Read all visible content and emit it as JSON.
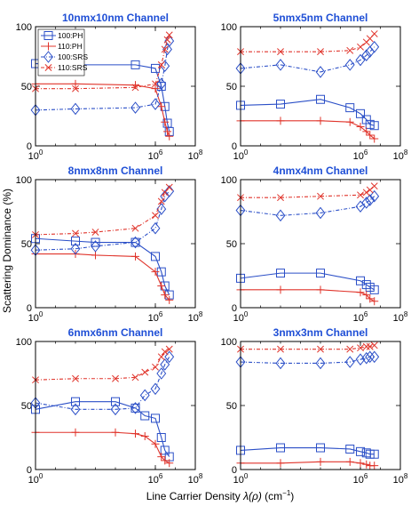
{
  "figure": {
    "ylabel": "Scattering Dominance (%)",
    "xlabel_main": "Line Carrier Density ",
    "xlabel_symbol": "λ(ρ)",
    "xlabel_unit": " (cm",
    "xlabel_unit_exp": "−1",
    "xlabel_close": ")"
  },
  "colors": {
    "blue": "#2b4fc7",
    "red": "#e0342b",
    "title": "#1f4fd6"
  },
  "chart_data": [
    {
      "type": "line",
      "title": "10nmx10nm Channel",
      "xscale": "log",
      "xlim": [
        1,
        100000000
      ],
      "ylim": [
        0,
        100
      ],
      "xticks": [
        {
          "v": 1,
          "base": "10",
          "exp": "0"
        },
        {
          "v": 1000000,
          "base": "10",
          "exp": "6"
        },
        {
          "v": 100000000,
          "base": "10",
          "exp": "8"
        }
      ],
      "yticks": [
        "0",
        "50",
        "100"
      ],
      "legend": {
        "position": "top-left",
        "entries": [
          "100:PH",
          "110:PH",
          "100:SRS",
          "110:SRS"
        ]
      },
      "series": [
        {
          "name": "100:PH",
          "color": "blue",
          "dash": "solid",
          "marker": "square",
          "x": [
            1,
            100,
            100000,
            1000000,
            2000000,
            3000000,
            4000000,
            5000000
          ],
          "y": [
            69,
            68,
            68,
            65,
            50,
            33,
            19,
            12
          ]
        },
        {
          "name": "110:PH",
          "color": "red",
          "dash": "solid",
          "marker": "plus",
          "x": [
            1,
            100,
            100000,
            1000000,
            2000000,
            3000000,
            4000000,
            5000000
          ],
          "y": [
            52,
            52,
            51,
            48,
            33,
            20,
            12,
            8
          ]
        },
        {
          "name": "100:SRS",
          "color": "blue",
          "dash": "dashdot",
          "marker": "diamond",
          "x": [
            1,
            100,
            100000,
            1000000,
            2000000,
            3000000,
            4000000,
            5000000
          ],
          "y": [
            30,
            31,
            32,
            35,
            52,
            67,
            81,
            88
          ]
        },
        {
          "name": "110:SRS",
          "color": "red",
          "dash": "dashdot",
          "marker": "x",
          "x": [
            1,
            100,
            100000,
            1000000,
            2000000,
            3000000,
            4000000,
            5000000
          ],
          "y": [
            48,
            48,
            49,
            52,
            68,
            81,
            89,
            93
          ]
        }
      ]
    },
    {
      "type": "line",
      "title": "5nmx5nm Channel",
      "xscale": "log",
      "xlim": [
        1,
        100000000
      ],
      "ylim": [
        0,
        100
      ],
      "xticks": [
        {
          "v": 1,
          "base": "10",
          "exp": "0"
        },
        {
          "v": 1000000,
          "base": "10",
          "exp": "6"
        },
        {
          "v": 100000000,
          "base": "10",
          "exp": "8"
        }
      ],
      "yticks": [
        "0",
        "50",
        "100"
      ],
      "series": [
        {
          "name": "100:PH",
          "color": "blue",
          "dash": "solid",
          "marker": "square",
          "x": [
            1,
            100,
            10000,
            300000,
            1000000,
            2000000,
            3000000,
            5000000
          ],
          "y": [
            34,
            35,
            39,
            32,
            27,
            22,
            18,
            17
          ]
        },
        {
          "name": "110:PH",
          "color": "red",
          "dash": "solid",
          "marker": "plus",
          "x": [
            1,
            100,
            10000,
            300000,
            1000000,
            2000000,
            3000000,
            5000000
          ],
          "y": [
            21,
            21,
            21,
            20,
            16,
            12,
            9,
            6
          ]
        },
        {
          "name": "100:SRS",
          "color": "blue",
          "dash": "dashdot",
          "marker": "diamond",
          "x": [
            1,
            100,
            10000,
            300000,
            1000000,
            2000000,
            3000000,
            5000000
          ],
          "y": [
            65,
            68,
            62,
            68,
            72,
            76,
            79,
            83
          ]
        },
        {
          "name": "110:SRS",
          "color": "red",
          "dash": "dashdot",
          "marker": "x",
          "x": [
            1,
            100,
            10000,
            300000,
            1000000,
            2000000,
            3000000,
            5000000
          ],
          "y": [
            79,
            79,
            79,
            80,
            83,
            87,
            90,
            94
          ]
        }
      ]
    },
    {
      "type": "line",
      "title": "8nmx8nm Channel",
      "xscale": "log",
      "xlim": [
        1,
        100000000
      ],
      "ylim": [
        0,
        100
      ],
      "xticks": [
        {
          "v": 1,
          "base": "10",
          "exp": "0"
        },
        {
          "v": 1000000,
          "base": "10",
          "exp": "6"
        },
        {
          "v": 100000000,
          "base": "10",
          "exp": "8"
        }
      ],
      "yticks": [
        "0",
        "50",
        "100"
      ],
      "series": [
        {
          "name": "100:PH",
          "color": "blue",
          "dash": "solid",
          "marker": "square",
          "x": [
            1,
            100,
            1000,
            100000,
            1000000,
            2000000,
            3000000,
            5000000
          ],
          "y": [
            54,
            52,
            51,
            51,
            40,
            28,
            17,
            10
          ]
        },
        {
          "name": "110:PH",
          "color": "red",
          "dash": "solid",
          "marker": "plus",
          "x": [
            1,
            100,
            1000,
            100000,
            1000000,
            2000000,
            3000000,
            5000000
          ],
          "y": [
            42,
            42,
            41,
            40,
            28,
            17,
            10,
            6
          ]
        },
        {
          "name": "100:SRS",
          "color": "blue",
          "dash": "dashdot",
          "marker": "diamond",
          "x": [
            1,
            100,
            1000,
            100000,
            1000000,
            2000000,
            3000000,
            5000000
          ],
          "y": [
            45,
            46,
            48,
            51,
            62,
            77,
            87,
            91
          ]
        },
        {
          "name": "110:SRS",
          "color": "red",
          "dash": "dashdot",
          "marker": "x",
          "x": [
            1,
            100,
            1000,
            100000,
            1000000,
            2000000,
            3000000,
            5000000
          ],
          "y": [
            57,
            58,
            59,
            62,
            72,
            83,
            90,
            94
          ]
        }
      ]
    },
    {
      "type": "line",
      "title": "4nmx4nm Channel",
      "xscale": "log",
      "xlim": [
        1,
        100000000
      ],
      "ylim": [
        0,
        100
      ],
      "xticks": [
        {
          "v": 1,
          "base": "10",
          "exp": "0"
        },
        {
          "v": 1000000,
          "base": "10",
          "exp": "6"
        },
        {
          "v": 100000000,
          "base": "10",
          "exp": "8"
        }
      ],
      "yticks": [
        "0",
        "50",
        "100"
      ],
      "series": [
        {
          "name": "100:PH",
          "color": "blue",
          "dash": "solid",
          "marker": "square",
          "x": [
            1,
            100,
            10000,
            1000000,
            2000000,
            3000000,
            5000000
          ],
          "y": [
            23,
            27,
            27,
            21,
            18,
            16,
            14
          ]
        },
        {
          "name": "110:PH",
          "color": "red",
          "dash": "solid",
          "marker": "plus",
          "x": [
            1,
            100,
            10000,
            1000000,
            2000000,
            3000000,
            5000000
          ],
          "y": [
            14,
            14,
            14,
            12,
            10,
            7,
            5
          ]
        },
        {
          "name": "100:SRS",
          "color": "blue",
          "dash": "dashdot",
          "marker": "diamond",
          "x": [
            1,
            100,
            10000,
            1000000,
            2000000,
            3000000,
            5000000
          ],
          "y": [
            76,
            72,
            74,
            79,
            82,
            84,
            87
          ]
        },
        {
          "name": "110:SRS",
          "color": "red",
          "dash": "dashdot",
          "marker": "x",
          "x": [
            1,
            100,
            10000,
            1000000,
            2000000,
            3000000,
            5000000
          ],
          "y": [
            86,
            86,
            87,
            88,
            90,
            92,
            95
          ]
        }
      ]
    },
    {
      "type": "line",
      "title": "6nmx6nm Channel",
      "xscale": "log",
      "xlim": [
        1,
        100000000
      ],
      "ylim": [
        0,
        100
      ],
      "xticks": [
        {
          "v": 1,
          "base": "10",
          "exp": "0"
        },
        {
          "v": 1000000,
          "base": "10",
          "exp": "6"
        },
        {
          "v": 100000000,
          "base": "10",
          "exp": "8"
        }
      ],
      "yticks": [
        "0",
        "50",
        "100"
      ],
      "series": [
        {
          "name": "100:PH",
          "color": "blue",
          "dash": "solid",
          "marker": "square",
          "x": [
            1,
            100,
            10000,
            100000,
            300000,
            1000000,
            2000000,
            3000000,
            5000000
          ],
          "y": [
            47,
            53,
            53,
            48,
            42,
            40,
            25,
            15,
            10
          ]
        },
        {
          "name": "110:PH",
          "color": "red",
          "dash": "solid",
          "marker": "plus",
          "x": [
            1,
            100,
            10000,
            100000,
            300000,
            1000000,
            2000000,
            3000000,
            5000000
          ],
          "y": [
            29,
            29,
            29,
            28,
            26,
            20,
            10,
            7,
            5
          ]
        },
        {
          "name": "100:SRS",
          "color": "blue",
          "dash": "dashdot",
          "marker": "diamond",
          "x": [
            1,
            100,
            10000,
            100000,
            300000,
            1000000,
            2000000,
            3000000,
            5000000
          ],
          "y": [
            52,
            47,
            47,
            48,
            58,
            63,
            75,
            82,
            88
          ]
        },
        {
          "name": "110:SRS",
          "color": "red",
          "dash": "dashdot",
          "marker": "x",
          "x": [
            1,
            100,
            10000,
            100000,
            300000,
            1000000,
            2000000,
            3000000,
            5000000
          ],
          "y": [
            70,
            71,
            71,
            72,
            76,
            80,
            88,
            92,
            94
          ]
        }
      ]
    },
    {
      "type": "line",
      "title": "3nmx3nm Channel",
      "xscale": "log",
      "xlim": [
        1,
        100000000
      ],
      "ylim": [
        0,
        100
      ],
      "xticks": [
        {
          "v": 1,
          "base": "10",
          "exp": "0"
        },
        {
          "v": 1000000,
          "base": "10",
          "exp": "6"
        },
        {
          "v": 100000000,
          "base": "10",
          "exp": "8"
        }
      ],
      "yticks": [
        "0",
        "50",
        "100"
      ],
      "series": [
        {
          "name": "100:PH",
          "color": "blue",
          "dash": "solid",
          "marker": "square",
          "x": [
            1,
            100,
            10000,
            300000,
            1000000,
            2000000,
            3000000,
            5000000
          ],
          "y": [
            15,
            17,
            17,
            16,
            14,
            13,
            12,
            12
          ]
        },
        {
          "name": "110:PH",
          "color": "red",
          "dash": "solid",
          "marker": "plus",
          "x": [
            1,
            100,
            10000,
            300000,
            1000000,
            2000000,
            3000000,
            5000000
          ],
          "y": [
            5,
            5,
            6,
            6,
            5,
            4,
            3,
            3
          ]
        },
        {
          "name": "100:SRS",
          "color": "blue",
          "dash": "dashdot",
          "marker": "diamond",
          "x": [
            1,
            100,
            10000,
            300000,
            1000000,
            2000000,
            3000000,
            5000000
          ],
          "y": [
            84,
            83,
            83,
            84,
            86,
            87,
            88,
            88
          ]
        },
        {
          "name": "110:SRS",
          "color": "red",
          "dash": "dashdot",
          "marker": "x",
          "x": [
            1,
            100,
            10000,
            300000,
            1000000,
            2000000,
            3000000,
            5000000
          ],
          "y": [
            94,
            94,
            94,
            94,
            95,
            96,
            96,
            97
          ]
        }
      ]
    }
  ]
}
